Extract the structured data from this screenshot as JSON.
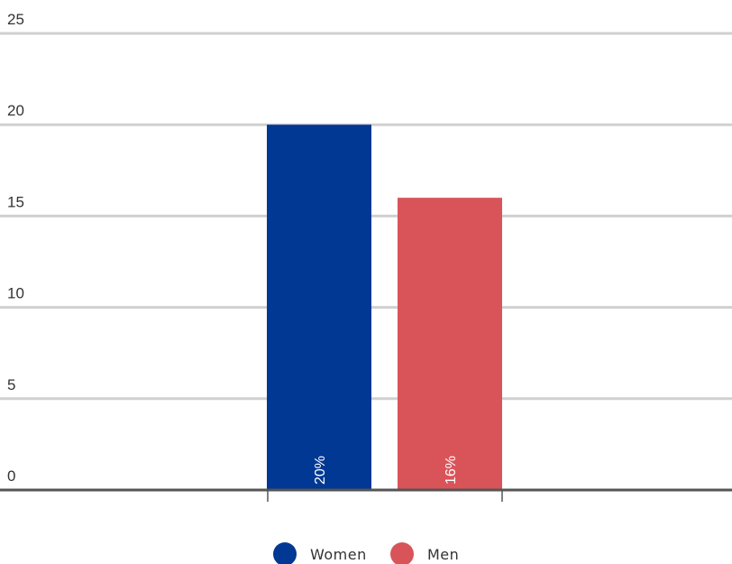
{
  "chart_data": {
    "type": "bar",
    "title": "",
    "xlabel": "",
    "ylabel": "",
    "ylim": [
      0,
      25
    ],
    "yticks": [
      0,
      5,
      10,
      15,
      20,
      25
    ],
    "grid": true,
    "legend_position": "bottom-center",
    "series": [
      {
        "name": "Women",
        "value": 20,
        "label": "20%",
        "color": "#003893"
      },
      {
        "name": "Men",
        "value": 16,
        "label": "16%",
        "color": "#d95459"
      }
    ]
  }
}
